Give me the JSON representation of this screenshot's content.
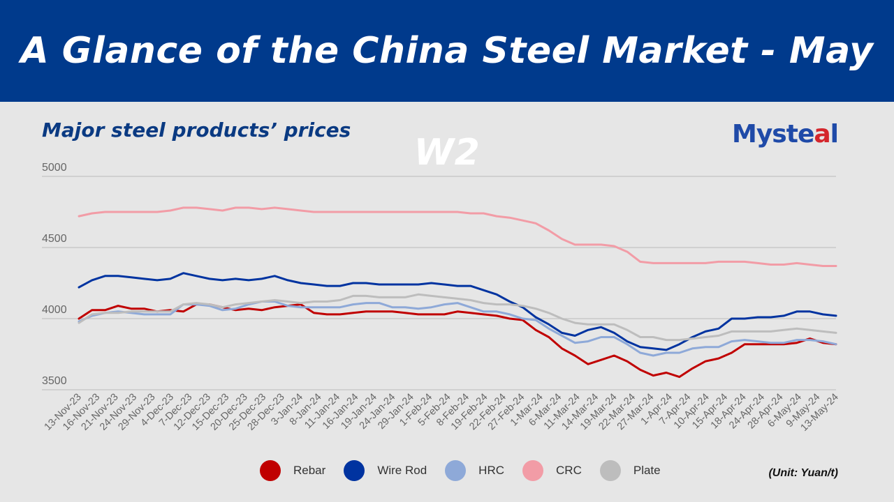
{
  "header": {
    "title": "A Glance of the China Steel Market - May W2"
  },
  "subtitle": "Major steel products’ prices",
  "logo": {
    "text_main": "Myste",
    "text_accent": "a",
    "text_end": "l"
  },
  "unit_note": "(Unit: Yuan/t)",
  "colors": {
    "banner": "#003a8c",
    "grid": "#c4c4c4",
    "axis_text": "#666666"
  },
  "chart_data": {
    "type": "line",
    "title": "Major steel products’ prices",
    "xlabel": "",
    "ylabel": "Yuan/t",
    "ylim": [
      3500,
      5000
    ],
    "yticks": [
      3500,
      4000,
      4500,
      5000
    ],
    "grid": true,
    "legend_position": "bottom",
    "x_tick_labels": [
      "13-Nov-23",
      "16-Nov-23",
      "21-Nov-23",
      "24-Nov-23",
      "29-Nov-23",
      "4-Dec-23",
      "7-Dec-23",
      "12-Dec-23",
      "15-Dec-23",
      "20-Dec-23",
      "25-Dec-23",
      "28-Dec-23",
      "3-Jan-24",
      "8-Jan-24",
      "11-Jan-24",
      "16-Jan-24",
      "19-Jan-24",
      "24-Jan-24",
      "29-Jan-24",
      "1-Feb-24",
      "5-Feb-24",
      "8-Feb-24",
      "19-Feb-24",
      "22-Feb-24",
      "27-Feb-24",
      "1-Mar-24",
      "6-Mar-24",
      "11-Mar-24",
      "14-Mar-24",
      "19-Mar-24",
      "22-Mar-24",
      "27-Mar-24",
      "1-Apr-24",
      "7-Apr-24",
      "10-Apr-24",
      "15-Apr-24",
      "18-Apr-24",
      "24-Apr-24",
      "28-Apr-24",
      "6-May-24",
      "9-May-24",
      "13-May-24"
    ],
    "series": [
      {
        "name": "Rebar",
        "color": "#c00000",
        "values": [
          4000,
          4060,
          4060,
          4090,
          4070,
          4070,
          4050,
          4060,
          4050,
          4100,
          4100,
          4080,
          4060,
          4070,
          4060,
          4080,
          4090,
          4100,
          4040,
          4030,
          4030,
          4040,
          4050,
          4050,
          4050,
          4040,
          4030,
          4030,
          4030,
          4050,
          4040,
          4030,
          4020,
          4000,
          3990,
          3920,
          3870,
          3790,
          3740,
          3680,
          3710,
          3740,
          3700,
          3640,
          3600,
          3620,
          3590,
          3650,
          3700,
          3720,
          3760,
          3820,
          3820,
          3820,
          3820,
          3830,
          3860,
          3830,
          3820
        ]
      },
      {
        "name": "Wire Rod",
        "color": "#0033a0",
        "values": [
          4220,
          4270,
          4300,
          4300,
          4290,
          4280,
          4270,
          4280,
          4320,
          4300,
          4280,
          4270,
          4280,
          4270,
          4280,
          4300,
          4270,
          4250,
          4240,
          4230,
          4230,
          4250,
          4250,
          4240,
          4240,
          4240,
          4240,
          4250,
          4240,
          4230,
          4230,
          4200,
          4170,
          4120,
          4080,
          4010,
          3960,
          3900,
          3880,
          3920,
          3940,
          3900,
          3840,
          3800,
          3790,
          3780,
          3820,
          3870,
          3910,
          3930,
          4000,
          4000,
          4010,
          4010,
          4020,
          4050,
          4050,
          4030,
          4020
        ]
      },
      {
        "name": "HRC",
        "color": "#8ea9d8",
        "values": [
          3980,
          4020,
          4040,
          4050,
          4040,
          4030,
          4030,
          4030,
          4100,
          4100,
          4090,
          4060,
          4070,
          4100,
          4120,
          4120,
          4090,
          4080,
          4080,
          4080,
          4080,
          4100,
          4110,
          4110,
          4080,
          4080,
          4070,
          4080,
          4100,
          4110,
          4080,
          4050,
          4050,
          4030,
          4000,
          3990,
          3930,
          3880,
          3830,
          3840,
          3870,
          3870,
          3820,
          3760,
          3740,
          3760,
          3760,
          3790,
          3800,
          3800,
          3840,
          3850,
          3840,
          3830,
          3830,
          3850,
          3850,
          3840,
          3820
        ]
      },
      {
        "name": "CRC",
        "color": "#f29ca6",
        "values": [
          4720,
          4740,
          4750,
          4750,
          4750,
          4750,
          4750,
          4760,
          4780,
          4780,
          4770,
          4760,
          4780,
          4780,
          4770,
          4780,
          4770,
          4760,
          4750,
          4750,
          4750,
          4750,
          4750,
          4750,
          4750,
          4750,
          4750,
          4750,
          4750,
          4750,
          4740,
          4740,
          4720,
          4710,
          4690,
          4670,
          4620,
          4560,
          4520,
          4520,
          4520,
          4510,
          4470,
          4400,
          4390,
          4390,
          4390,
          4390,
          4390,
          4400,
          4400,
          4400,
          4390,
          4380,
          4380,
          4390,
          4380,
          4370,
          4370
        ]
      },
      {
        "name": "Plate",
        "color": "#bdbdbd",
        "values": [
          3970,
          4030,
          4040,
          4040,
          4050,
          4050,
          4050,
          4050,
          4100,
          4110,
          4100,
          4080,
          4100,
          4110,
          4120,
          4130,
          4120,
          4110,
          4120,
          4120,
          4130,
          4160,
          4160,
          4150,
          4150,
          4150,
          4170,
          4160,
          4150,
          4140,
          4130,
          4110,
          4100,
          4100,
          4090,
          4070,
          4040,
          4000,
          3970,
          3960,
          3960,
          3960,
          3920,
          3870,
          3870,
          3850,
          3850,
          3860,
          3870,
          3880,
          3910,
          3910,
          3910,
          3910,
          3920,
          3930,
          3920,
          3910,
          3900
        ]
      }
    ]
  }
}
